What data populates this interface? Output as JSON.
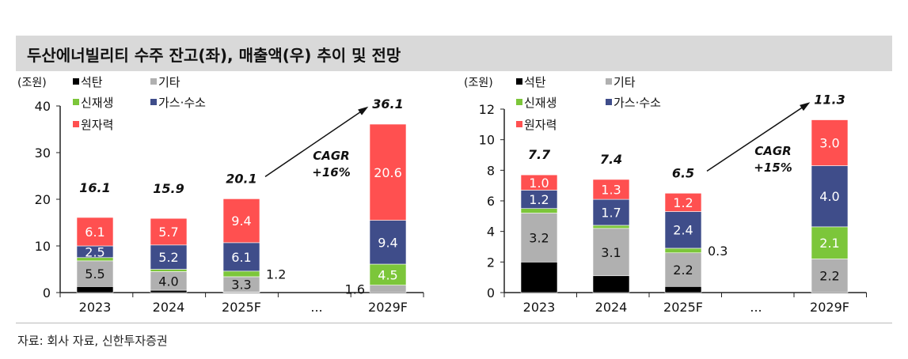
{
  "title": "두산에너빌리티 수주 잔고(좌), 매출액(우) 추이 및 전망",
  "source": "자료: 회사 자료, 신한투자증권",
  "colors": {
    "석탄": "#000000",
    "기타": "#b0b0b0",
    "신재생": "#7cc63a",
    "가스·수소": "#3f4d8a",
    "원자력": "#ff5050"
  },
  "chart_data": [
    {
      "type": "bar",
      "stacked": true,
      "title": "수주 잔고",
      "unit": "(조원)",
      "categories": [
        "2023",
        "2024",
        "2025F",
        "...",
        "2029F"
      ],
      "ylim": [
        0,
        40
      ],
      "yticks": [
        "0",
        "10",
        "20",
        "30",
        "40"
      ],
      "series": [
        {
          "name": "석탄",
          "values": [
            1.3,
            0.5,
            0.1,
            null,
            0
          ],
          "labels": [
            null,
            null,
            null,
            null,
            null
          ]
        },
        {
          "name": "기타",
          "values": [
            5.5,
            4.0,
            3.3,
            null,
            1.6
          ],
          "labels": [
            "5.5",
            "4.0",
            "3.3",
            null,
            null
          ]
        },
        {
          "name": "신재생",
          "values": [
            0.7,
            0.5,
            1.2,
            null,
            4.5
          ],
          "labels": [
            null,
            null,
            null,
            null,
            "4.5"
          ]
        },
        {
          "name": "가스·수소",
          "values": [
            2.5,
            5.2,
            6.1,
            null,
            9.4
          ],
          "labels": [
            "2.5",
            "5.2",
            "6.1",
            null,
            "9.4"
          ]
        },
        {
          "name": "원자력",
          "values": [
            6.1,
            5.7,
            9.4,
            null,
            20.6
          ],
          "labels": [
            "6.1",
            "5.7",
            "9.4",
            null,
            "20.6"
          ]
        }
      ],
      "outside_labels": [
        {
          "category": "2025F",
          "series": "신재생",
          "text": "1.2",
          "side": "right"
        },
        {
          "category": "2029F",
          "series": "기타",
          "text": "1.6",
          "side": "left"
        }
      ],
      "totals": [
        "16.1",
        "15.9",
        "20.1",
        null,
        "36.1"
      ],
      "annotation": {
        "line1": "CAGR",
        "line2": "+16%",
        "from": "2025F",
        "to": "2029F"
      }
    },
    {
      "type": "bar",
      "stacked": true,
      "title": "매출액",
      "unit": "(조원)",
      "categories": [
        "2023",
        "2024",
        "2025F",
        "...",
        "2029F"
      ],
      "ylim": [
        0,
        12
      ],
      "yticks": [
        "0",
        "2",
        "4",
        "6",
        "8",
        "10",
        "12"
      ],
      "series": [
        {
          "name": "석탄",
          "values": [
            2.0,
            1.1,
            0.4,
            null,
            0
          ],
          "labels": [
            null,
            null,
            null,
            null,
            null
          ]
        },
        {
          "name": "기타",
          "values": [
            3.2,
            3.1,
            2.2,
            null,
            2.2
          ],
          "labels": [
            "3.2",
            "3.1",
            "2.2",
            null,
            "2.2"
          ]
        },
        {
          "name": "신재생",
          "values": [
            0.3,
            0.2,
            0.3,
            null,
            2.1
          ],
          "labels": [
            null,
            null,
            null,
            null,
            "2.1"
          ]
        },
        {
          "name": "가스·수소",
          "values": [
            1.2,
            1.7,
            2.4,
            null,
            4.0
          ],
          "labels": [
            "1.2",
            "1.7",
            "2.4",
            null,
            "4.0"
          ]
        },
        {
          "name": "원자력",
          "values": [
            1.0,
            1.3,
            1.2,
            null,
            3.0
          ],
          "labels": [
            "1.0",
            "1.3",
            "1.2",
            null,
            "3.0"
          ]
        }
      ],
      "outside_labels": [
        {
          "category": "2025F",
          "series": "신재생",
          "text": "0.3",
          "side": "right"
        }
      ],
      "totals": [
        "7.7",
        "7.4",
        "6.5",
        null,
        "11.3"
      ],
      "annotation": {
        "line1": "CAGR",
        "line2": "+15%",
        "from": "2025F",
        "to": "2029F"
      }
    }
  ]
}
